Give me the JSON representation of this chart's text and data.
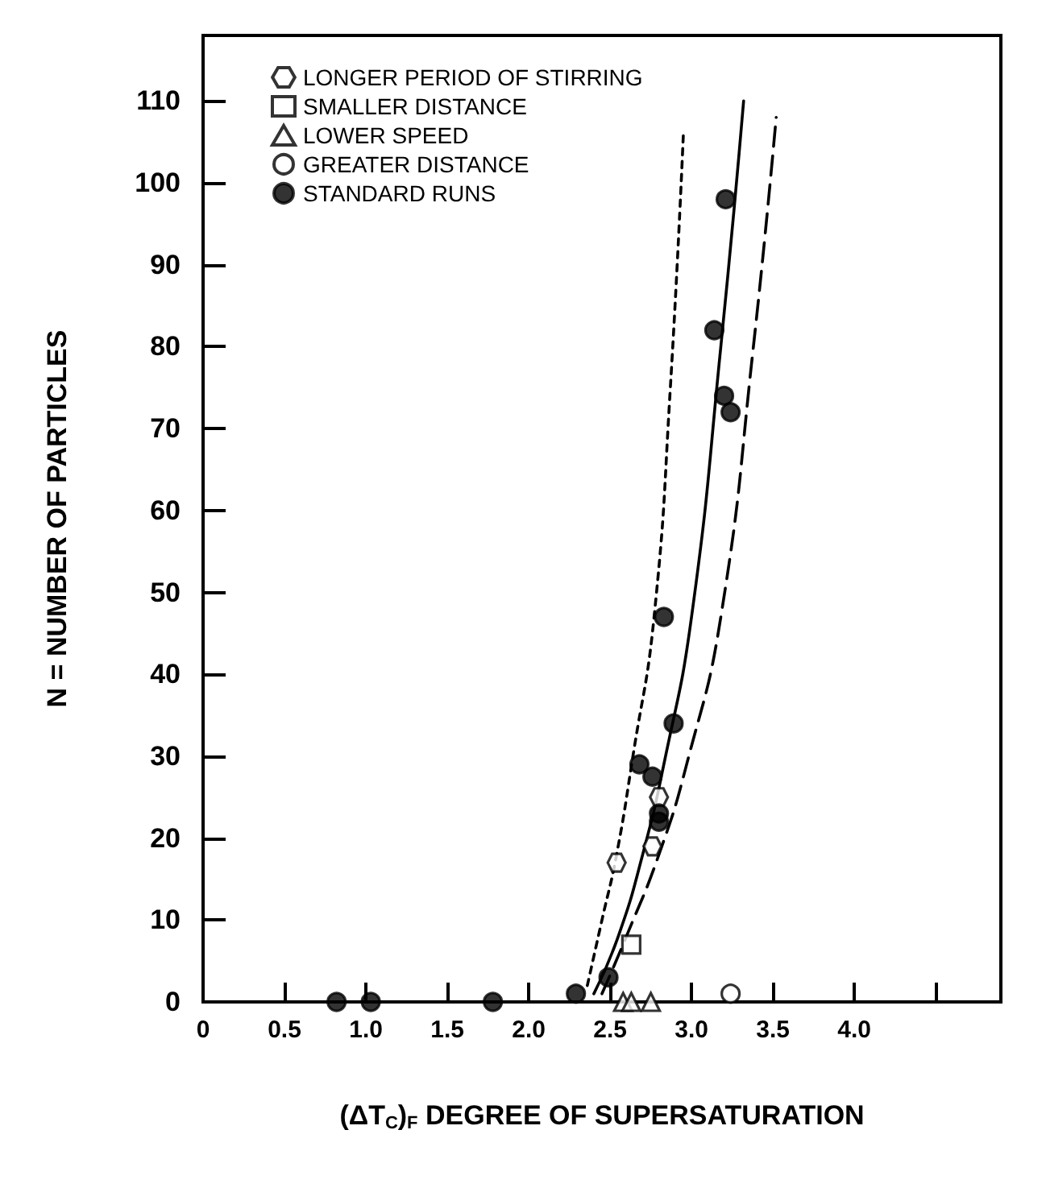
{
  "chart_data": {
    "type": "scatter",
    "xlabel": "(ΔT$_{C}$)$_{F}$ DEGREE OF SUPERSATURATION",
    "ylabel": "N = NUMBER OF PARTICLES",
    "xlim": [
      0,
      4.9
    ],
    "ylim": [
      0,
      118
    ],
    "xticks": [
      0,
      0.5,
      {
        "value": 1,
        "label": "1.0"
      },
      1.5,
      {
        "value": 2,
        "label": "2.0"
      },
      2.5,
      {
        "value": 3,
        "label": "3.0"
      },
      3.5,
      {
        "value": 4,
        "label": "4.0"
      },
      {
        "value": 4.5,
        "label": null
      }
    ],
    "yticks": [
      0,
      10,
      20,
      30,
      40,
      50,
      60,
      70,
      80,
      90,
      100,
      110
    ],
    "grid": false,
    "legend": "top left",
    "series": [
      {
        "name": "LONGER PERIOD OF STIRRING",
        "color": "#000000",
        "x": [
          2.54,
          2.76,
          2.8
        ],
        "values": [
          17,
          19,
          25
        ]
      },
      {
        "name": "SMALLER DISTANCE",
        "marker": "square-open",
        "color": "#000000",
        "x": [
          2.63
        ],
        "values": [
          7
        ]
      },
      {
        "name": "LOWER SPEED",
        "marker": "triangle-open",
        "color": "#000000",
        "x": [
          2.58,
          2.63,
          2.75
        ],
        "values": [
          0,
          0,
          0
        ]
      },
      {
        "name": "GREATER DISTANCE",
        "marker": "circle-open",
        "color": "#000000",
        "x": [
          3.24
        ],
        "values": [
          1
        ]
      },
      {
        "name": "STANDARD RUNS",
        "marker": "circle",
        "color": "#000000",
        "x": [
          0.82,
          1.03,
          1.78,
          2.29,
          2.49,
          2.68,
          2.76,
          2.8,
          2.8,
          2.83,
          2.89,
          3.14,
          3.2,
          3.21,
          3.24
        ],
        "values": [
          0,
          0,
          0,
          1,
          3,
          29,
          27.5,
          23,
          22,
          47,
          34,
          82,
          74,
          98,
          72
        ]
      },
      {
        "type": "line",
        "marker": "none",
        "line_style": "dotted",
        "color": "#000000",
        "x": [
          2.36,
          2.45,
          2.54,
          2.64,
          2.77,
          2.87,
          2.95
        ],
        "values": [
          2,
          10,
          18,
          30,
          47,
          75,
          106
        ]
      },
      {
        "type": "line",
        "marker": "none",
        "line_style": "solid",
        "color": "#000000",
        "x": [
          2.4,
          2.55,
          2.7,
          2.83,
          3.0,
          3.18,
          3.32
        ],
        "values": [
          1,
          8,
          18,
          29,
          47,
          80,
          110
        ]
      },
      {
        "type": "line",
        "marker": "none",
        "line_style": "dashed",
        "color": "#000000",
        "x": [
          2.45,
          2.6,
          2.8,
          2.97,
          3.18,
          3.38,
          3.52
        ],
        "values": [
          1,
          8,
          18,
          29,
          47,
          80,
          108
        ]
      }
    ]
  }
}
